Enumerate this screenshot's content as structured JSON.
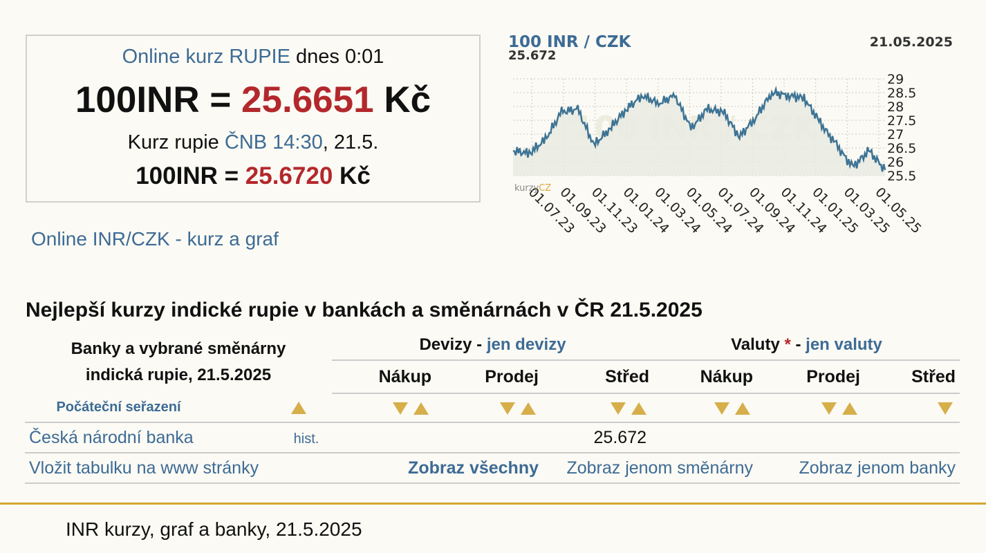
{
  "summary": {
    "line1_link": "Online kurz RUPIE",
    "line1_rest": " dnes 0:01",
    "online_left": "100INR = ",
    "online_value": "25.6651",
    "online_unit": " Kč",
    "line3_pre": "Kurz rupie ",
    "line3_link": "ČNB 14:30",
    "line3_post": ", 21.5.",
    "cnb_left": "100INR = ",
    "cnb_value": "25.6720",
    "cnb_unit": " Kč"
  },
  "online_link": "Online INR/CZK - kurz a graf",
  "chart_header": {
    "title": "100 INR / CZK",
    "value": "25.672",
    "date": "21.05.2025",
    "watermark": "100 INR / CZK",
    "logo_a": "kurzy",
    "logo_b": "CZ"
  },
  "chart_data": {
    "type": "area",
    "title": "100 INR / CZK",
    "x_ticks": [
      "01.07.23",
      "01.09.23",
      "01.11.23",
      "01.01.24",
      "01.03.24",
      "01.05.24",
      "01.07.24",
      "01.09.24",
      "01.11.24",
      "01.01.25",
      "01.03.25",
      "01.05.25"
    ],
    "y_ticks": [
      "29",
      "28.5",
      "28",
      "27.5",
      "27",
      "26.5",
      "26",
      "25.5"
    ],
    "ylim": [
      25.5,
      29
    ],
    "x": [
      "2023-06",
      "2023-07",
      "2023-08",
      "2023-09",
      "2023-10",
      "2023-11",
      "2023-12",
      "2024-01",
      "2024-02",
      "2024-03",
      "2024-04",
      "2024-05",
      "2024-06",
      "2024-07",
      "2024-08",
      "2024-09",
      "2024-10",
      "2024-11",
      "2024-12",
      "2025-01",
      "2025-02",
      "2025-03",
      "2025-04",
      "2025-05"
    ],
    "values": [
      26.4,
      26.3,
      26.8,
      27.8,
      27.9,
      26.6,
      27.2,
      27.9,
      28.4,
      28.1,
      28.4,
      27.2,
      27.9,
      27.8,
      26.9,
      27.6,
      28.5,
      28.4,
      28.3,
      27.4,
      26.6,
      25.8,
      26.4,
      25.7
    ],
    "grid": true,
    "line_color": "#3d7394",
    "fill_color": "#e9eae2"
  },
  "best_heading": "Nejlepší kurzy indické rupie v bankách a směnárnách v ČR 21.5.2025",
  "table": {
    "banks_header_1": "Banky a vybrané směnárny",
    "banks_header_2": "indická rupie, 21.5.2025",
    "devizy": "Devizy",
    "devizy_sep": " - ",
    "devizy_link": "jen devizy",
    "valuty": "Valuty",
    "valuty_star": " *",
    "valuty_sep": " - ",
    "valuty_link": "jen valuty",
    "cols": [
      "Nákup",
      "Prodej",
      "Střed",
      "Nákup",
      "Prodej",
      "Střed"
    ],
    "sort_label": "Počáteční seřazení",
    "bank_name": "Česká národní banka",
    "bank_hist": "hist.",
    "bank_stred": "25.672",
    "embed": "Vložit tabulku na www stránky",
    "show_all": "Zobraz všechny",
    "show_exchanges": "Zobraz jenom směnárny",
    "show_banks": "Zobraz jenom banky"
  },
  "footer": "INR kurzy, graf a banky, 21.5.2025"
}
